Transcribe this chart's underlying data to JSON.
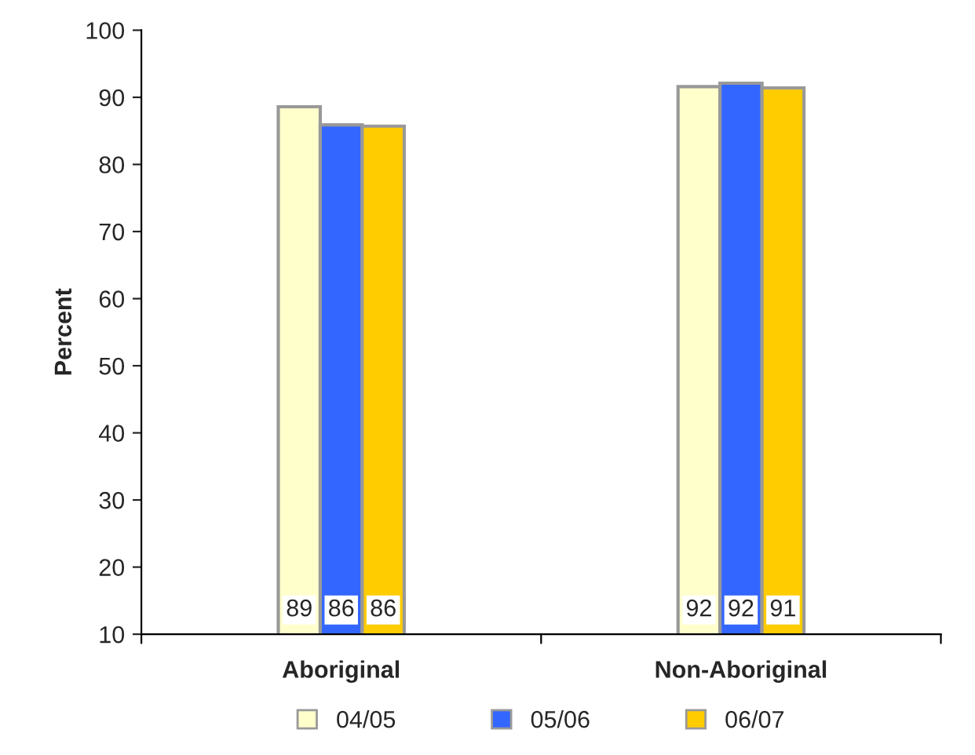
{
  "chart_data": {
    "type": "bar",
    "ylabel": "Percent",
    "categories": [
      "Aboriginal",
      "Non-Aboriginal"
    ],
    "series": [
      {
        "name": "04/05",
        "color": "#ffffcc",
        "values": [
          88.6,
          91.6
        ],
        "value_labels": [
          "89",
          "92"
        ]
      },
      {
        "name": "05/06",
        "color": "#3366ff",
        "values": [
          85.9,
          92.1
        ],
        "value_labels": [
          "86",
          "92"
        ]
      },
      {
        "name": "06/07",
        "color": "#ffcc00",
        "values": [
          85.7,
          91.4
        ],
        "value_labels": [
          "86",
          "91"
        ]
      }
    ],
    "ylim": [
      10,
      100
    ],
    "yticks": [
      10,
      20,
      30,
      40,
      50,
      60,
      70,
      80,
      90,
      100
    ],
    "grid": false,
    "legend": "bottom"
  }
}
